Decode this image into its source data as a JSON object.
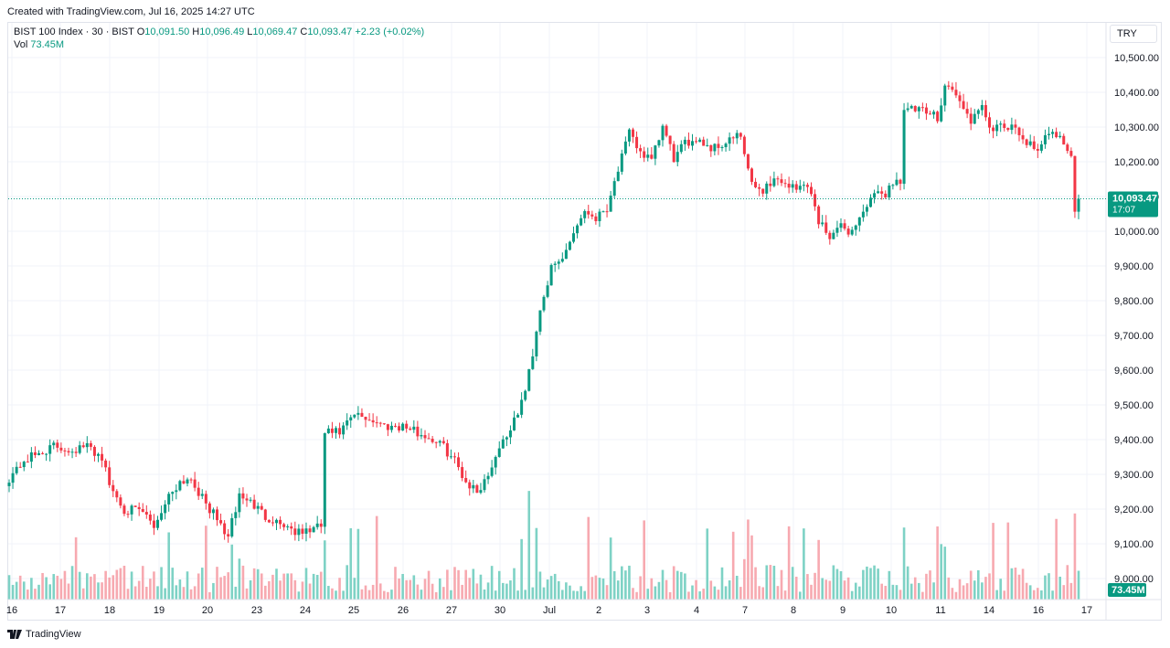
{
  "header": {
    "created_text": "Created with TradingView.com, Jul 16, 2025 14:27 UTC"
  },
  "legend": {
    "symbol": "BIST 100 Index · 30 · BIST",
    "o_label": "O",
    "o_value": "10,091.50",
    "h_label": "H",
    "h_value": "10,096.49",
    "l_label": "L",
    "l_value": "10,069.47",
    "c_label": "C",
    "c_value": "10,093.47",
    "change": "+2.23 (+0.02%)",
    "vol_label": "Vol",
    "vol_value": "73.45M"
  },
  "currency": "TRY",
  "footer": {
    "brand": "TradingView"
  },
  "colors": {
    "up": "#089981",
    "down": "#f23645",
    "up_vol": "#7ed2c5",
    "down_vol": "#f7a9b0",
    "grid": "#f0f3fa",
    "axis_text": "#131722"
  },
  "chart_data": {
    "type": "candlestick",
    "title": "BIST 100 Index · 30 · BIST",
    "interval": "30",
    "y_axis": {
      "min": 8960,
      "max": 10560,
      "ticks": [
        9000,
        9100,
        9200,
        9300,
        9400,
        9500,
        9600,
        9700,
        9800,
        9900,
        10000,
        10100,
        10200,
        10300,
        10400,
        10500
      ],
      "tick_labels": [
        "9,000.00",
        "9,100.00",
        "9,200.00",
        "9,300.00",
        "9,400.00",
        "9,500.00",
        "9,600.00",
        "9,700.00",
        "9,800.00",
        "9,900.00",
        "10,000.00",
        "10,100.00",
        "10,200.00",
        "10,300.00",
        "10,400.00",
        "10,500.00"
      ]
    },
    "x_axis": {
      "labels": [
        "16",
        "17",
        "18",
        "19",
        "20",
        "23",
        "24",
        "25",
        "26",
        "27",
        "30",
        "Jul",
        "2",
        "3",
        "4",
        "7",
        "8",
        "9",
        "10",
        "11",
        "14",
        "16",
        "17"
      ]
    },
    "last_price": {
      "value": 10093.47,
      "label": "10,093.47",
      "countdown": "17:07"
    },
    "volume_label": "73.45M",
    "daily_closes": [
      {
        "day": "16",
        "close": 9320
      },
      {
        "day": "17",
        "close": 9370
      },
      {
        "day": "18",
        "close": 9190
      },
      {
        "day": "19",
        "close": 9270
      },
      {
        "day": "20",
        "close": 9130
      },
      {
        "day": "23",
        "close": 9140
      },
      {
        "day": "24",
        "close": 9440
      },
      {
        "day": "25",
        "close": 9450
      },
      {
        "day": "26",
        "close": 9400
      },
      {
        "day": "27",
        "close": 9250
      },
      {
        "day": "30",
        "close": 9870
      },
      {
        "day": "Jul",
        "close": 10040
      },
      {
        "day": "2",
        "close": 10270
      },
      {
        "day": "3",
        "close": 10200
      },
      {
        "day": "4",
        "close": 10240
      },
      {
        "day": "7",
        "close": 10110
      },
      {
        "day": "8",
        "close": 10060
      },
      {
        "day": "9",
        "close": 10100
      },
      {
        "day": "10",
        "close": 10340
      },
      {
        "day": "11",
        "close": 10390
      },
      {
        "day": "14",
        "close": 10290
      },
      {
        "day": "16",
        "close": 10093.47
      }
    ]
  }
}
